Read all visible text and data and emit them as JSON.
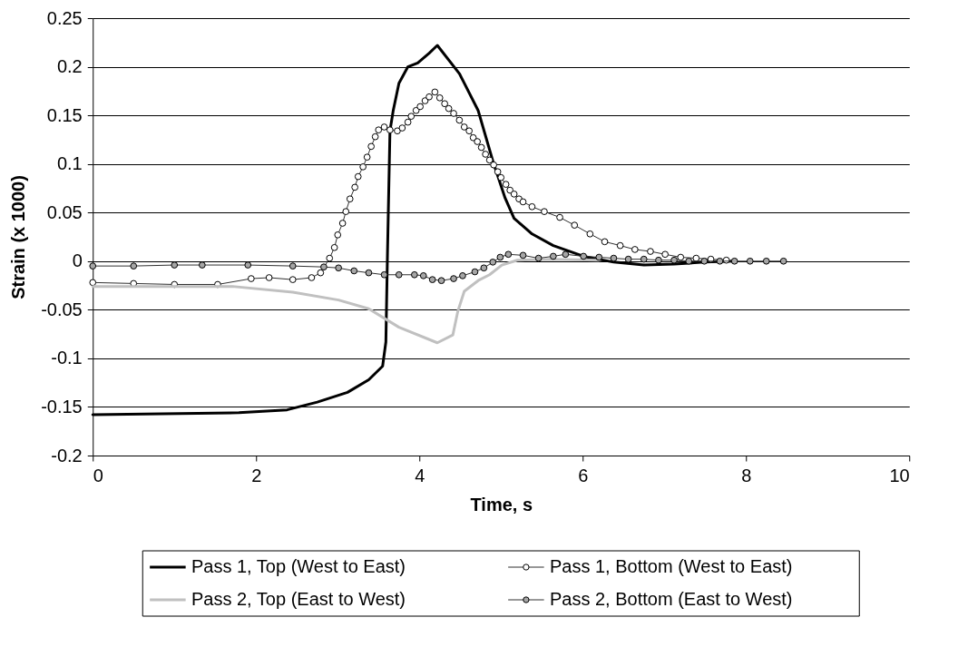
{
  "chart_data": {
    "type": "line",
    "xlabel": "Time, s",
    "ylabel": "Strain (x 1000)",
    "xlim": [
      0,
      10
    ],
    "xticks": [
      0,
      2,
      4,
      6,
      8,
      10
    ],
    "ylim": [
      -0.2,
      0.25
    ],
    "yticks": [
      -0.2,
      -0.15,
      -0.1,
      -0.05,
      0,
      0.05,
      0.1,
      0.15,
      0.2,
      0.25
    ],
    "grid": "y",
    "legend": "bottom",
    "series": [
      {
        "name": "Pass 1, Top (West to East)",
        "color": "#000000",
        "marker": "none",
        "x": [
          0,
          1.79,
          2.38,
          2.75,
          3.12,
          3.38,
          3.55,
          3.59,
          3.61,
          3.64,
          3.68,
          3.75,
          3.86,
          3.98,
          4.12,
          4.22,
          4.49,
          4.72,
          4.9,
          5.05,
          5.16,
          5.38,
          5.64,
          6.01,
          6.38,
          6.75,
          7.12,
          7.49,
          7.86
        ],
        "values": [
          -0.158,
          -0.156,
          -0.153,
          -0.145,
          -0.135,
          -0.122,
          -0.108,
          -0.083,
          0.01,
          0.134,
          0.155,
          0.183,
          0.2,
          0.204,
          0.214,
          0.222,
          0.193,
          0.155,
          0.103,
          0.065,
          0.044,
          0.028,
          0.016,
          0.005,
          -0.001,
          -0.004,
          -0.003,
          -0.001,
          0
        ]
      },
      {
        "name": "Pass 1, Bottom (West to East)",
        "color": "#ffffff",
        "marker": "circle",
        "x": [
          0,
          0.5,
          1,
          1.53,
          1.94,
          2.16,
          2.45,
          2.68,
          2.79,
          2.9,
          2.96,
          3.0,
          3.06,
          3.1,
          3.15,
          3.21,
          3.25,
          3.31,
          3.36,
          3.41,
          3.46,
          3.5,
          3.57,
          3.64,
          3.73,
          3.79,
          3.86,
          3.9,
          3.96,
          4.01,
          4.07,
          4.12,
          4.19,
          4.25,
          4.31,
          4.36,
          4.42,
          4.49,
          4.55,
          4.61,
          4.66,
          4.71,
          4.76,
          4.81,
          4.86,
          4.91,
          4.96,
          5.0,
          5.06,
          5.11,
          5.16,
          5.22,
          5.27,
          5.38,
          5.53,
          5.72,
          5.9,
          6.09,
          6.27,
          6.46,
          6.64,
          6.83,
          7.01,
          7.2,
          7.39,
          7.57,
          7.76
        ],
        "values": [
          -0.022,
          -0.023,
          -0.024,
          -0.024,
          -0.018,
          -0.017,
          -0.019,
          -0.017,
          -0.012,
          0.003,
          0.014,
          0.027,
          0.039,
          0.051,
          0.064,
          0.076,
          0.087,
          0.097,
          0.107,
          0.118,
          0.128,
          0.135,
          0.138,
          0.135,
          0.134,
          0.137,
          0.143,
          0.149,
          0.155,
          0.159,
          0.165,
          0.169,
          0.174,
          0.168,
          0.162,
          0.157,
          0.152,
          0.145,
          0.138,
          0.134,
          0.127,
          0.123,
          0.117,
          0.11,
          0.104,
          0.099,
          0.092,
          0.086,
          0.079,
          0.073,
          0.069,
          0.064,
          0.061,
          0.056,
          0.051,
          0.045,
          0.037,
          0.028,
          0.02,
          0.016,
          0.012,
          0.01,
          0.007,
          0.004,
          0.003,
          0.002,
          0.001
        ]
      },
      {
        "name": "Pass 2, Top (East to West)",
        "color": "#c0c0c0",
        "marker": "none",
        "x": [
          0,
          1.71,
          2.45,
          3.01,
          3.38,
          3.75,
          4.22,
          4.41,
          4.47,
          4.55,
          4.72,
          4.86,
          5.01,
          5.2,
          5.6,
          6.2
        ],
        "values": [
          -0.026,
          -0.026,
          -0.032,
          -0.04,
          -0.049,
          -0.068,
          -0.084,
          -0.076,
          -0.052,
          -0.031,
          -0.02,
          -0.014,
          -0.004,
          0.001,
          0.002,
          0.001
        ]
      },
      {
        "name": "Pass 2, Bottom (East to West)",
        "color": "#a6a6a6",
        "marker": "circle",
        "x": [
          0,
          0.5,
          1,
          1.34,
          1.9,
          2.45,
          2.83,
          3.01,
          3.2,
          3.38,
          3.57,
          3.75,
          3.94,
          4.05,
          4.16,
          4.27,
          4.42,
          4.53,
          4.68,
          4.79,
          4.9,
          4.99,
          5.09,
          5.27,
          5.46,
          5.64,
          5.79,
          6.01,
          6.2,
          6.38,
          6.56,
          6.75,
          6.93,
          7.12,
          7.3,
          7.49,
          7.68,
          7.86,
          8.05,
          8.25,
          8.46
        ],
        "values": [
          -0.005,
          -0.005,
          -0.004,
          -0.004,
          -0.004,
          -0.005,
          -0.006,
          -0.007,
          -0.01,
          -0.012,
          -0.014,
          -0.014,
          -0.014,
          -0.015,
          -0.019,
          -0.02,
          -0.018,
          -0.015,
          -0.011,
          -0.007,
          -0.001,
          0.004,
          0.007,
          0.006,
          0.003,
          0.005,
          0.007,
          0.005,
          0.004,
          0.003,
          0.002,
          0.002,
          0.001,
          0.001,
          0,
          0,
          0,
          0,
          0,
          0,
          0
        ]
      }
    ]
  }
}
